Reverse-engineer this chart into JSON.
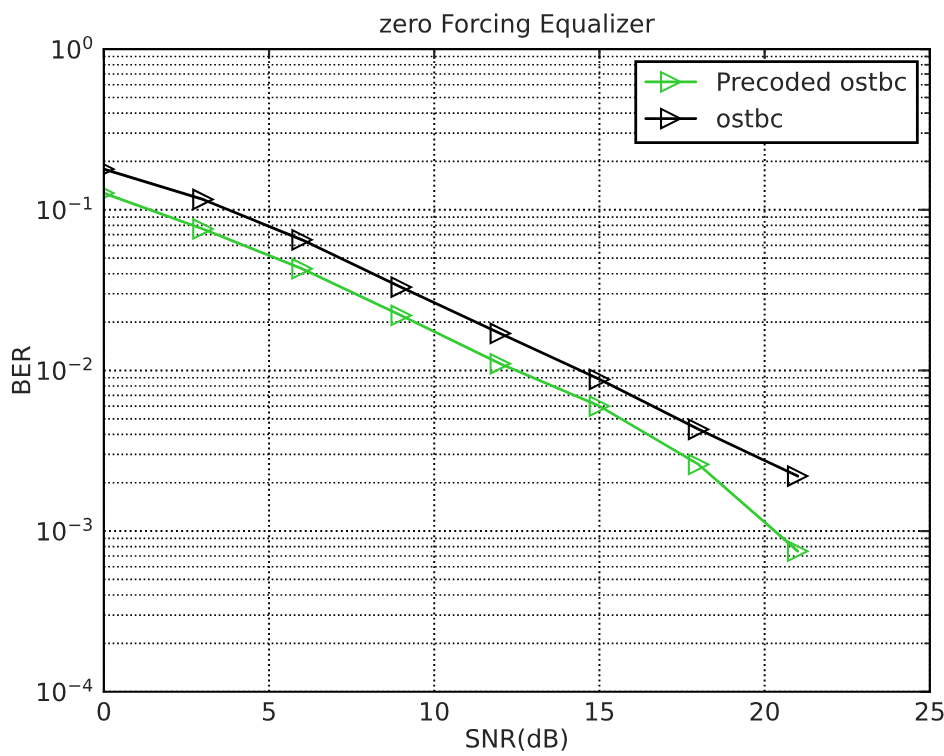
{
  "chart_data": {
    "type": "line",
    "title": "zero Forcing Equalizer",
    "xlabel": "SNR(dB)",
    "ylabel": "BER",
    "x": [
      0,
      3,
      6,
      9,
      12,
      15,
      18,
      21
    ],
    "series": [
      {
        "name": "Precoded ostbc",
        "color": "#33cc33",
        "values": [
          0.127,
          0.076,
          0.043,
          0.022,
          0.011,
          0.006,
          0.0026,
          0.00075
        ]
      },
      {
        "name": "ostbc",
        "color": "#000000",
        "values": [
          0.179,
          0.116,
          0.065,
          0.033,
          0.017,
          0.0088,
          0.0043,
          0.0022
        ]
      }
    ],
    "log": "y",
    "xlim": [
      0,
      25
    ],
    "xticks": [
      0,
      5,
      10,
      15,
      20,
      25
    ],
    "ylim": [
      0.0001,
      1
    ],
    "yticks": [
      {
        "value": 0.0001,
        "label": "10$^{−4}$"
      },
      {
        "value": 0.001,
        "label": "10$^{−3}$"
      },
      {
        "value": 0.01,
        "label": "10$^{−2}$"
      },
      {
        "value": 0.1,
        "label": "10$^{−1}$"
      },
      {
        "value": 1,
        "label": "10$^{0}$"
      }
    ],
    "grid": true,
    "legend": "top right",
    "marker": "triangle",
    "line_style": "solid"
  }
}
